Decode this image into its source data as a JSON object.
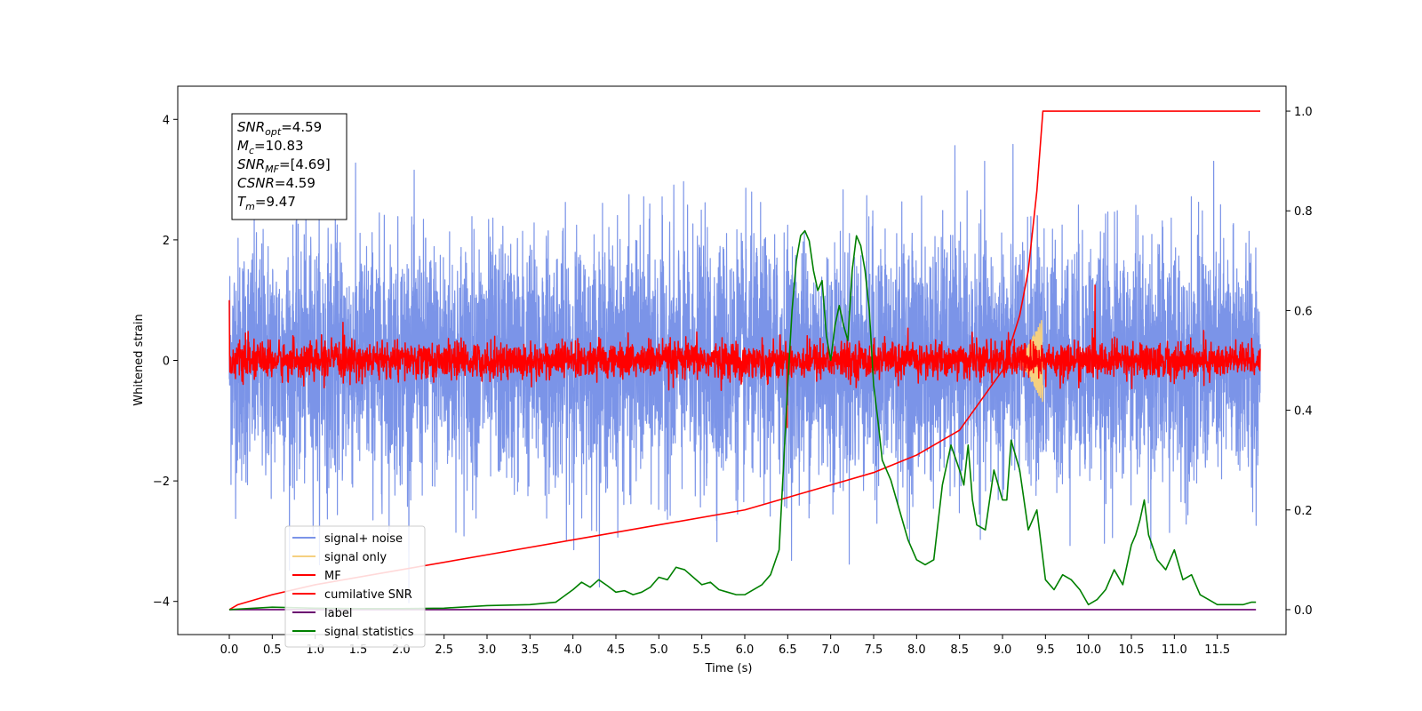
{
  "chart_data": {
    "type": "line",
    "xlabel": "Time (s)",
    "ylabel": "Whitened strain",
    "xlim": [
      -0.6,
      12.3
    ],
    "ylim": [
      -4.55,
      4.55
    ],
    "ylim_right": [
      -0.05,
      1.05
    ],
    "x_ticks": [
      "0.0",
      "0.5",
      "1.0",
      "1.5",
      "2.0",
      "2.5",
      "3.0",
      "3.5",
      "4.0",
      "4.5",
      "5.0",
      "5.5",
      "6.0",
      "6.5",
      "7.0",
      "7.5",
      "8.0",
      "8.5",
      "9.0",
      "9.5",
      "10.0",
      "10.5",
      "11.0",
      "11.5"
    ],
    "y_ticks_left": [
      "4",
      "2",
      "0",
      "−2",
      "−4"
    ],
    "y_ticks_right": [
      "1.0",
      "0.8",
      "0.6",
      "0.4",
      "0.2",
      "0.0"
    ],
    "grid": false,
    "legend": {
      "position": "lower-left",
      "entries": [
        {
          "label": "signal+ noise",
          "color": "#7b94e8"
        },
        {
          "label": "signal only",
          "color": "#f5d080"
        },
        {
          "label": "MF",
          "color": "#ff0000"
        },
        {
          "label": "cumilative SNR",
          "color": "#ff0000"
        },
        {
          "label": "label",
          "color": "#6a0070"
        },
        {
          "label": "signal statistics",
          "color": "#008000"
        }
      ]
    },
    "annotation": {
      "lines": [
        {
          "sym": "SNR",
          "sub": "opt",
          "value": "=4.59"
        },
        {
          "sym": "M",
          "sub": "c",
          "value": "=10.83"
        },
        {
          "sym": "SNR",
          "sub": "MF",
          "value": "=[4.69]"
        },
        {
          "sym": "CSNR",
          "sub": "",
          "value": "=4.59"
        },
        {
          "sym": "T",
          "sub": "m",
          "value": "=9.47"
        }
      ]
    },
    "series": [
      {
        "name": "signal+ noise",
        "axis": "left",
        "color": "#7b94e8",
        "t_range": [
          0.0,
          12.0
        ],
        "std": 1.0,
        "range": [
          -4.1,
          4.1
        ]
      },
      {
        "name": "signal only",
        "axis": "left",
        "color": "#f5d080",
        "t_range": [
          9.2,
          9.47
        ],
        "amplitude": 0.7
      },
      {
        "name": "MF",
        "axis": "left",
        "color": "#ff0000",
        "t_range": [
          0.0,
          12.0
        ],
        "std": 0.15,
        "start_value": 1.0
      },
      {
        "name": "cumilative SNR",
        "axis": "right",
        "color": "#ff0000",
        "x": [
          0.0,
          0.1,
          0.5,
          1.0,
          2.0,
          3.0,
          4.0,
          5.0,
          6.0,
          6.5,
          7.0,
          7.5,
          8.0,
          8.5,
          9.0,
          9.2,
          9.3,
          9.4,
          9.47,
          9.5,
          12.0
        ],
        "y": [
          0.0,
          0.01,
          0.03,
          0.05,
          0.08,
          0.11,
          0.14,
          0.17,
          0.2,
          0.225,
          0.25,
          0.275,
          0.31,
          0.36,
          0.48,
          0.59,
          0.68,
          0.84,
          1.0,
          1.0,
          1.0
        ]
      },
      {
        "name": "label",
        "axis": "right",
        "color": "#6a0070",
        "x": [
          0.0,
          11.95
        ],
        "y": [
          0.0,
          0.0
        ]
      },
      {
        "name": "signal statistics",
        "axis": "right",
        "color": "#008000",
        "x": [
          0.0,
          0.5,
          1.0,
          1.5,
          2.0,
          2.5,
          3.0,
          3.5,
          3.8,
          4.0,
          4.1,
          4.2,
          4.3,
          4.4,
          4.5,
          4.6,
          4.7,
          4.8,
          4.9,
          5.0,
          5.1,
          5.2,
          5.3,
          5.4,
          5.5,
          5.6,
          5.7,
          5.8,
          5.9,
          6.0,
          6.1,
          6.2,
          6.3,
          6.4,
          6.5,
          6.55,
          6.6,
          6.65,
          6.7,
          6.75,
          6.8,
          6.85,
          6.9,
          6.95,
          7.0,
          7.05,
          7.1,
          7.15,
          7.2,
          7.25,
          7.3,
          7.35,
          7.4,
          7.45,
          7.5,
          7.55,
          7.6,
          7.7,
          7.8,
          7.9,
          8.0,
          8.1,
          8.2,
          8.3,
          8.4,
          8.5,
          8.55,
          8.6,
          8.65,
          8.7,
          8.8,
          8.9,
          9.0,
          9.05,
          9.1,
          9.2,
          9.3,
          9.4,
          9.5,
          9.6,
          9.7,
          9.8,
          9.9,
          10.0,
          10.1,
          10.2,
          10.3,
          10.4,
          10.5,
          10.55,
          10.6,
          10.65,
          10.7,
          10.8,
          10.9,
          11.0,
          11.1,
          11.2,
          11.3,
          11.4,
          11.5,
          11.6,
          11.7,
          11.8,
          11.9,
          11.95
        ],
        "y": [
          0.0,
          0.005,
          0.003,
          0.002,
          0.002,
          0.003,
          0.008,
          0.01,
          0.015,
          0.04,
          0.055,
          0.045,
          0.06,
          0.048,
          0.035,
          0.038,
          0.03,
          0.035,
          0.045,
          0.065,
          0.06,
          0.085,
          0.08,
          0.065,
          0.05,
          0.055,
          0.04,
          0.035,
          0.03,
          0.03,
          0.04,
          0.05,
          0.07,
          0.12,
          0.45,
          0.6,
          0.7,
          0.75,
          0.76,
          0.74,
          0.68,
          0.64,
          0.66,
          0.55,
          0.5,
          0.57,
          0.61,
          0.57,
          0.54,
          0.68,
          0.75,
          0.73,
          0.68,
          0.6,
          0.45,
          0.38,
          0.3,
          0.26,
          0.2,
          0.14,
          0.1,
          0.09,
          0.1,
          0.25,
          0.33,
          0.28,
          0.25,
          0.33,
          0.22,
          0.17,
          0.16,
          0.28,
          0.22,
          0.22,
          0.34,
          0.28,
          0.16,
          0.2,
          0.06,
          0.04,
          0.07,
          0.06,
          0.04,
          0.01,
          0.02,
          0.04,
          0.08,
          0.05,
          0.13,
          0.15,
          0.18,
          0.22,
          0.15,
          0.1,
          0.08,
          0.12,
          0.06,
          0.07,
          0.03,
          0.02,
          0.01,
          0.01,
          0.01,
          0.01,
          0.015,
          0.015
        ]
      }
    ]
  }
}
